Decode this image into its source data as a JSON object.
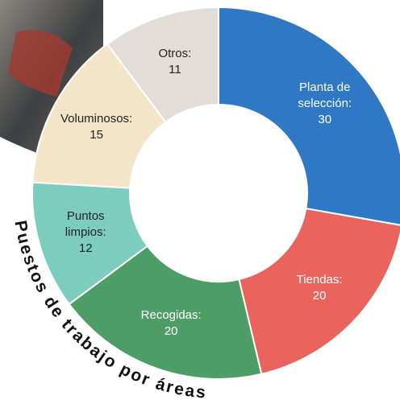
{
  "chart_data": {
    "type": "donut",
    "title": "Puestos de trabajo por áreas",
    "categories": [
      "Planta de selección:",
      "Tiendas:",
      "Recogidas:",
      "Puntos limpios:",
      "Voluminosos:",
      "Otros:"
    ],
    "values": [
      30,
      20,
      20,
      12,
      15,
      11
    ],
    "colors": [
      "#2f78c3",
      "#e8645d",
      "#4e9d66",
      "#7dcdbf",
      "#f4e5c9",
      "#e4ddd7"
    ]
  }
}
